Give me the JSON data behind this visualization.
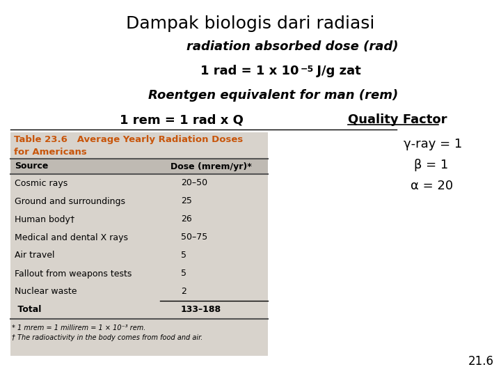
{
  "title": "Dampak biologis dari radiasi",
  "bg_color": "#ffffff",
  "slide_number": "21.6",
  "table_title1": "Table 23.6   Average Yearly Radiation Doses",
  "table_title2": "for Americans",
  "table_rows": [
    [
      "Cosmic rays",
      "20–50"
    ],
    [
      "Ground and surroundings",
      "25"
    ],
    [
      "Human body†",
      "26"
    ],
    [
      "Medical and dental X rays",
      "50–75"
    ],
    [
      "Air travel",
      "5"
    ],
    [
      "Fallout from weapons tests",
      "5"
    ],
    [
      "Nuclear waste",
      "2"
    ],
    [
      " Total",
      "133–188"
    ]
  ],
  "table_bg": "#d8d3cc",
  "table_header_bg": "#bfbab3",
  "footnote1": "* 1 mrem = 1 millirem = 1 × 10⁻³ rem.",
  "footnote2": "† The radioactivity in the body comes from food and air.",
  "qf1": "γ-ray = 1",
  "qf2": "β = 1",
  "qf3": "α = 20",
  "orange_color": "#c8550a",
  "title_fontsize": 18,
  "body_fontsize": 13,
  "table_fontsize": 9,
  "qf_fontsize": 13
}
